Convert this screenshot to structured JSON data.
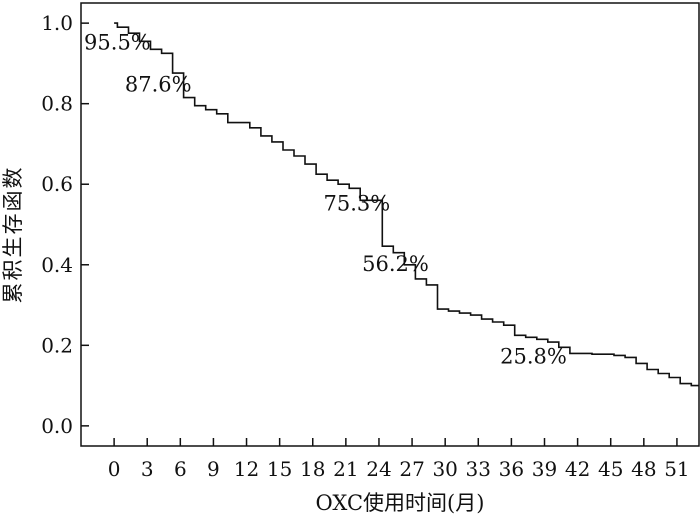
{
  "chart_data": {
    "type": "line",
    "step": true,
    "title": "",
    "xlabel": "OXC使用时间(月)",
    "ylabel": "累积生存函数",
    "xlim": [
      -3,
      53
    ],
    "ylim": [
      -0.05,
      1.05
    ],
    "x_ticks": [
      0,
      3,
      6,
      9,
      12,
      15,
      18,
      21,
      24,
      27,
      30,
      33,
      36,
      39,
      42,
      45,
      48,
      51
    ],
    "x_tick_labels": [
      "0",
      "3",
      "6",
      "9",
      "12",
      "15",
      "18",
      "21",
      "24",
      "27",
      "30",
      "33",
      "36",
      "39",
      "42",
      "45",
      "48",
      "51"
    ],
    "y_ticks": [
      0.0,
      0.2,
      0.4,
      0.6,
      0.8,
      1.0
    ],
    "y_tick_labels": [
      "0.0",
      "0.2",
      "0.4",
      "0.6",
      "0.8",
      "1.0"
    ],
    "grid": false,
    "series": [
      {
        "x": [
          0,
          0.3,
          1.3,
          2.3,
          3.3,
          4.3,
          5.3,
          6.3,
          7.3,
          8.3,
          9.3,
          10.3,
          12.3,
          13.3,
          14.3,
          15.3,
          16.3,
          17.3,
          18.3,
          19.3,
          20.3,
          21.3,
          22.3,
          24.3,
          25.3,
          26.3,
          27.3,
          28.3,
          29.3,
          30.3,
          31.3,
          32.3,
          33.3,
          34.3,
          35.3,
          36.3,
          37.3,
          38.3,
          39.3,
          40.3,
          41.3,
          43.3,
          44.3,
          45.3,
          46.3,
          47.3,
          48.3,
          49.3,
          50.3,
          51.3,
          52.3,
          53
        ],
        "y": [
          1.0,
          0.99,
          0.975,
          0.955,
          0.935,
          0.925,
          0.876,
          0.815,
          0.795,
          0.785,
          0.775,
          0.753,
          0.74,
          0.72,
          0.705,
          0.685,
          0.67,
          0.65,
          0.625,
          0.61,
          0.6,
          0.59,
          0.56,
          0.446,
          0.43,
          0.4,
          0.365,
          0.35,
          0.29,
          0.285,
          0.28,
          0.275,
          0.265,
          0.258,
          0.25,
          0.225,
          0.22,
          0.215,
          0.208,
          0.195,
          0.18,
          0.178,
          0.178,
          0.175,
          0.17,
          0.155,
          0.14,
          0.13,
          0.12,
          0.105,
          0.1,
          0.1
        ]
      }
    ],
    "annotations": [
      {
        "text": "95.5%",
        "x": 0.3,
        "y": 0.935
      },
      {
        "text": "87.6%",
        "x": 4.0,
        "y": 0.83
      },
      {
        "text": "75.3%",
        "x": 22.0,
        "y": 0.535
      },
      {
        "text": "56.2%",
        "x": 25.5,
        "y": 0.385
      },
      {
        "text": "25.8%",
        "x": 38.0,
        "y": 0.155
      }
    ]
  }
}
